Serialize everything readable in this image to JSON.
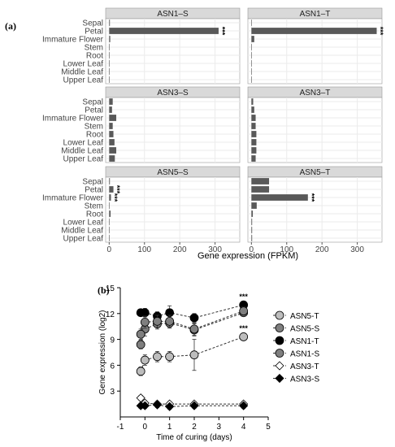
{
  "panel_labels": {
    "a": "(a)",
    "b": "(b)"
  },
  "colors": {
    "bar_fill": "#595959",
    "strip_fill": "#d9d9d9",
    "grid": "#ebebeb",
    "open_marker": "#ffffff",
    "light_gray_marker": "#bdbdbd",
    "dark_gray_marker": "#7f7f7f",
    "black_marker": "#000000"
  },
  "chart_data": [
    {
      "type": "bar",
      "orientation": "horizontal",
      "xlabel": "Gene expression (FPKM)",
      "xticks": [
        0,
        100,
        200,
        300
      ],
      "xlim": [
        -10,
        370
      ],
      "categories": [
        "Sepal",
        "Petal",
        "Immature Flower",
        "Stem",
        "Root",
        "Lower Leaf",
        "Middle Leaf",
        "Upper Leaf"
      ],
      "grid": true,
      "facets": [
        {
          "title": "ASN1–S",
          "values": [
            2,
            310,
            3,
            0,
            0,
            0,
            0,
            0
          ],
          "annotations": [
            {
              "category": "Petal",
              "text": "***"
            }
          ]
        },
        {
          "title": "ASN1–T",
          "values": [
            1,
            355,
            8,
            0,
            1,
            0,
            0,
            0
          ],
          "annotations": [
            {
              "category": "Petal",
              "text": "***"
            }
          ]
        },
        {
          "title": "ASN3–S",
          "values": [
            10,
            8,
            20,
            10,
            12,
            15,
            20,
            16
          ],
          "annotations": []
        },
        {
          "title": "ASN3–T",
          "values": [
            5,
            8,
            12,
            12,
            14,
            14,
            14,
            12
          ],
          "annotations": []
        },
        {
          "title": "ASN5–S",
          "values": [
            2,
            12,
            5,
            0,
            4,
            1,
            1,
            1
          ],
          "annotations": [
            {
              "category": "Petal",
              "text": "***"
            },
            {
              "category": "Immature Flower",
              "text": "***"
            }
          ]
        },
        {
          "title": "ASN5–T",
          "values": [
            50,
            50,
            160,
            15,
            4,
            2,
            2,
            2
          ],
          "annotations": [
            {
              "category": "Immature Flower",
              "text": "***"
            }
          ]
        }
      ]
    },
    {
      "type": "line",
      "xlabel": "Time of curing (days)",
      "ylabel": "Gene expression (log2)",
      "xlim": [
        -1,
        5
      ],
      "ylim": [
        0,
        15
      ],
      "xticks": [
        -1,
        0,
        1,
        2,
        3,
        4,
        5
      ],
      "yticks": [
        3,
        6,
        9,
        12,
        15
      ],
      "grid": false,
      "legend_position": "right",
      "series": [
        {
          "name": "ASN5-T",
          "marker": "circle",
          "fill": "light_gray",
          "x": [
            -0.17,
            0,
            0.5,
            1,
            2,
            4
          ],
          "y": [
            5.3,
            6.6,
            7.0,
            7.0,
            7.2,
            9.3
          ],
          "err": [
            0.5,
            0.6,
            0.6,
            0.6,
            1.8,
            0.4
          ],
          "annotations": [
            {
              "x": 4,
              "text": "***"
            }
          ]
        },
        {
          "name": "ASN5-S",
          "marker": "circle",
          "fill": "dark_gray",
          "x": [
            -0.17,
            0,
            0.5,
            1,
            2,
            4
          ],
          "y": [
            8.4,
            10.2,
            10.8,
            10.9,
            10.1,
            12.1
          ],
          "err": [
            0.5,
            0.8,
            0.6,
            0.6,
            0.7,
            0.4
          ],
          "annotations": []
        },
        {
          "name": "ASN1-T",
          "marker": "circle",
          "fill": "black",
          "x": [
            -0.17,
            0,
            0.5,
            1,
            2,
            4
          ],
          "y": [
            12.1,
            12.1,
            11.7,
            12.1,
            11.5,
            13.0
          ],
          "err": [
            0.4,
            0.5,
            0.5,
            0.8,
            0.5,
            0.4
          ],
          "annotations": [
            {
              "x": 4,
              "text": "***"
            }
          ]
        },
        {
          "name": "ASN1-S",
          "marker": "circle",
          "fill": "gray",
          "x": [
            -0.17,
            0,
            0.5,
            1,
            2,
            4
          ],
          "y": [
            9.6,
            11.0,
            11.1,
            11.1,
            10.2,
            12.3
          ],
          "err": [
            0.6,
            0.7,
            0.7,
            0.7,
            0.7,
            0.5
          ],
          "annotations": []
        },
        {
          "name": "ASN3-T",
          "marker": "diamond",
          "fill": "white",
          "x": [
            -0.17,
            0,
            0.5,
            1,
            2,
            4
          ],
          "y": [
            2.2,
            1.6,
            1.5,
            1.5,
            1.5,
            1.5
          ],
          "err": [
            0.3,
            0.3,
            0.3,
            0.3,
            0.3,
            0.3
          ],
          "annotations": []
        },
        {
          "name": "ASN3-S",
          "marker": "diamond",
          "fill": "black",
          "x": [
            -0.17,
            0,
            0.5,
            1,
            2,
            4
          ],
          "y": [
            1.3,
            1.3,
            1.4,
            1.2,
            1.3,
            1.3
          ],
          "err": [
            0.3,
            0.3,
            0.3,
            0.3,
            0.3,
            0.3
          ],
          "annotations": []
        }
      ]
    }
  ]
}
